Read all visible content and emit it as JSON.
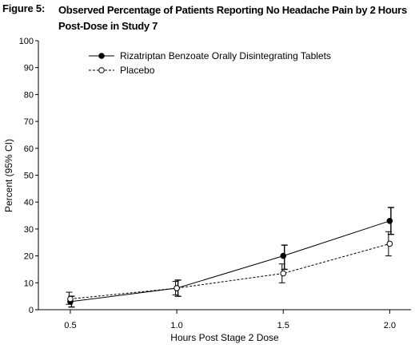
{
  "figure": {
    "label": "Figure 5:",
    "title": "Observed Percentage of Patients Reporting No Headache Pain by 2 Hours Post-Dose in Study 7"
  },
  "chart_data": {
    "type": "line",
    "title": "Observed Percentage of Patients Reporting No Headache Pain by 2 Hours Post-Dose in Study 7",
    "xlabel": "Hours Post Stage 2 Dose",
    "ylabel": "Percent (95% CI)",
    "x": [
      0.5,
      1.0,
      1.5,
      2.0
    ],
    "x_tick_labels": [
      "0.5",
      "1.0",
      "1.5",
      "2.0"
    ],
    "y_ticks": [
      0,
      10,
      20,
      30,
      40,
      50,
      60,
      70,
      80,
      90,
      100
    ],
    "ylim": [
      0,
      100
    ],
    "xlim": [
      0.35,
      2.1
    ],
    "grid": false,
    "legend_position": "top-left",
    "series": [
      {
        "name": "Rizatriptan Benzoate Orally Disintegrating Tablets",
        "style": "solid",
        "marker": "filled-circle",
        "values": [
          3,
          8,
          20,
          33
        ],
        "ci_low": [
          1,
          5,
          15,
          28
        ],
        "ci_high": [
          5,
          11,
          24,
          38
        ]
      },
      {
        "name": "Placebo",
        "style": "dashed",
        "marker": "open-circle",
        "values": [
          4,
          8,
          13.5,
          24.5
        ],
        "ci_low": [
          2,
          5.5,
          10,
          20
        ],
        "ci_high": [
          6.5,
          10.5,
          17,
          29
        ]
      }
    ]
  }
}
